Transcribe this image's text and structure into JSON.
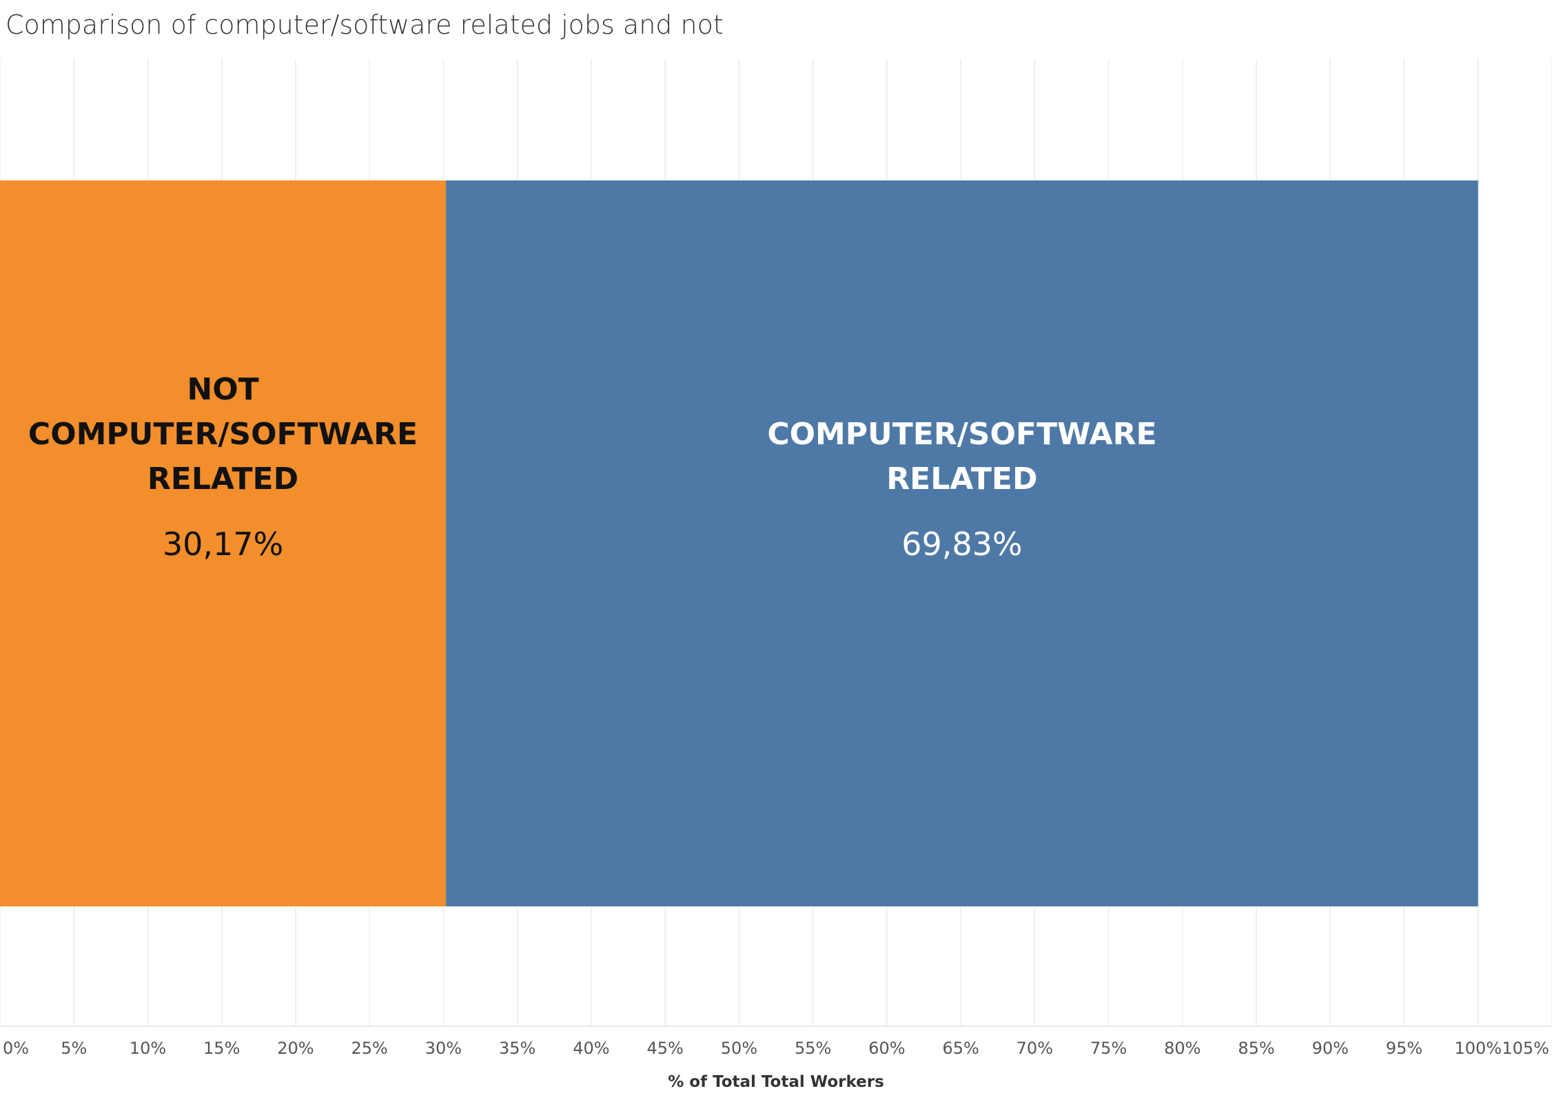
{
  "chart_data": {
    "type": "bar",
    "title": "Comparison of computer/software related jobs and not",
    "xlabel": "% of Total Total Workers",
    "ylabel": "",
    "xlim": [
      0,
      105
    ],
    "x_ticks": [
      "0%",
      "5%",
      "10%",
      "15%",
      "20%",
      "25%",
      "30%",
      "35%",
      "40%",
      "45%",
      "50%",
      "55%",
      "60%",
      "65%",
      "70%",
      "75%",
      "80%",
      "85%",
      "90%",
      "95%",
      "100%",
      "105%"
    ],
    "grid": true,
    "stacked": true,
    "orientation": "horizontal",
    "series": [
      {
        "name": "NOT COMPUTER/SOFTWARE RELATED",
        "label_lines": [
          "NOT",
          "COMPUTER/SOFTWARE",
          "RELATED"
        ],
        "value": 30.17,
        "value_label": "30,17%",
        "color": "#F28E2B",
        "text_color": "#111111"
      },
      {
        "name": "COMPUTER/SOFTWARE RELATED",
        "label_lines": [
          "COMPUTER/SOFTWARE",
          "RELATED"
        ],
        "value": 69.83,
        "value_label": "69,83%",
        "color": "#4E79A7",
        "text_color": "#ffffff"
      }
    ]
  }
}
